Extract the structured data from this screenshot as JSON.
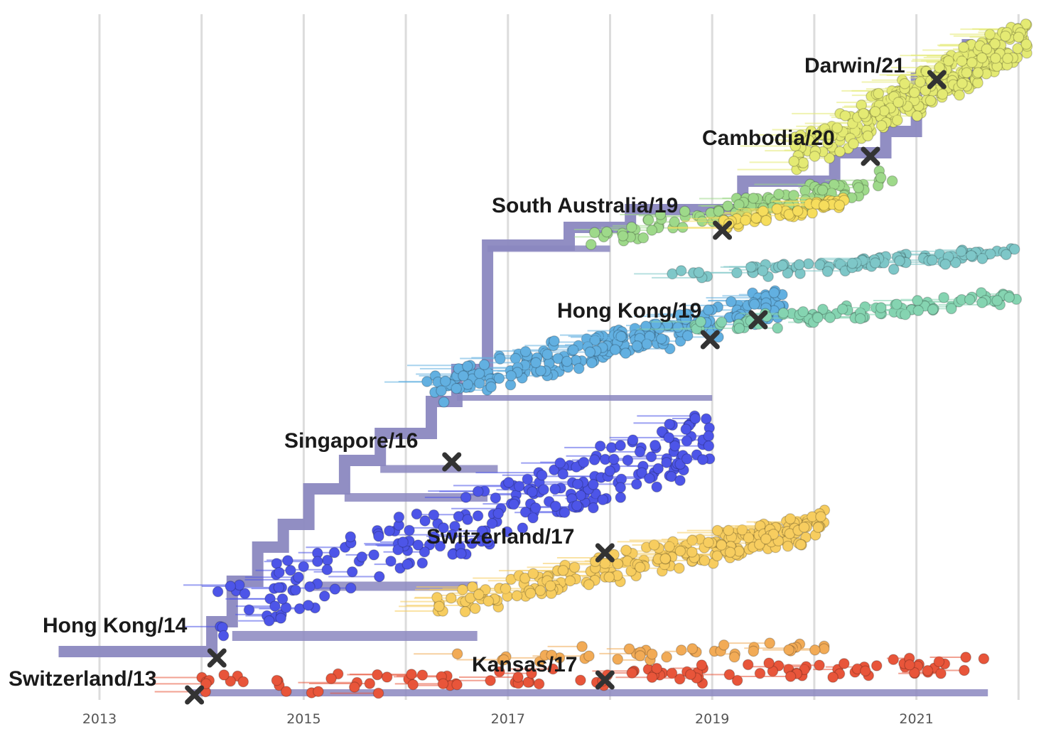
{
  "chart_data": {
    "type": "scatter",
    "subtype": "phylogenetic-tree",
    "title": "",
    "xlabel": "",
    "ylabel": "",
    "xlim": [
      2012.6,
      2022.25
    ],
    "x_ticks": [
      2013,
      2015,
      2017,
      2019,
      2021
    ],
    "x_tick_labels": [
      "2013",
      "2015",
      "2017",
      "2019",
      "2021"
    ],
    "grid": "vertical",
    "vaccine_strains": [
      {
        "name": "Switzerland/13",
        "x": 2013.93
      },
      {
        "name": "Hong Kong/14",
        "x": 2014.15
      },
      {
        "name": "Singapore/16",
        "x": 2016.45
      },
      {
        "name": "Switzerland/17",
        "x": 2017.95
      },
      {
        "name": "Kansas/17",
        "x": 2017.95
      },
      {
        "name": "Hong Kong/19",
        "x": 2018.98
      },
      {
        "name": "South Australia/19",
        "x": 2019.1
      },
      {
        "name": "Cambodia/20",
        "x": 2020.55
      },
      {
        "name": "Darwin/21",
        "x": 2021.2
      }
    ],
    "clades": [
      {
        "color": "#e8553a",
        "x_range": [
          2014.0,
          2021.75
        ]
      },
      {
        "color": "#f2ab56",
        "x_range": [
          2016.2,
          2020.3
        ]
      },
      {
        "color": "#f7cd5f",
        "x_range": [
          2016.3,
          2020.1
        ]
      },
      {
        "color": "#4d55e8",
        "x_range": [
          2014.1,
          2019.0
        ]
      },
      {
        "color": "#62b0e1",
        "x_range": [
          2016.2,
          2019.7
        ]
      },
      {
        "color": "#85d4b1",
        "x_range": [
          2018.8,
          2022.0
        ]
      },
      {
        "color": "#7ec7c8",
        "x_range": [
          2018.6,
          2022.0
        ]
      },
      {
        "color": "#9ed98a",
        "x_range": [
          2017.8,
          2020.8
        ]
      },
      {
        "color": "#f6dd5c",
        "x_range": [
          2019.0,
          2020.3
        ]
      },
      {
        "color": "#e4ea73",
        "x_range": [
          2019.8,
          2022.1
        ]
      }
    ],
    "colors": {
      "trunk": "#8b88c0",
      "grid": "#dcdcdc",
      "marker": "#333333"
    }
  }
}
